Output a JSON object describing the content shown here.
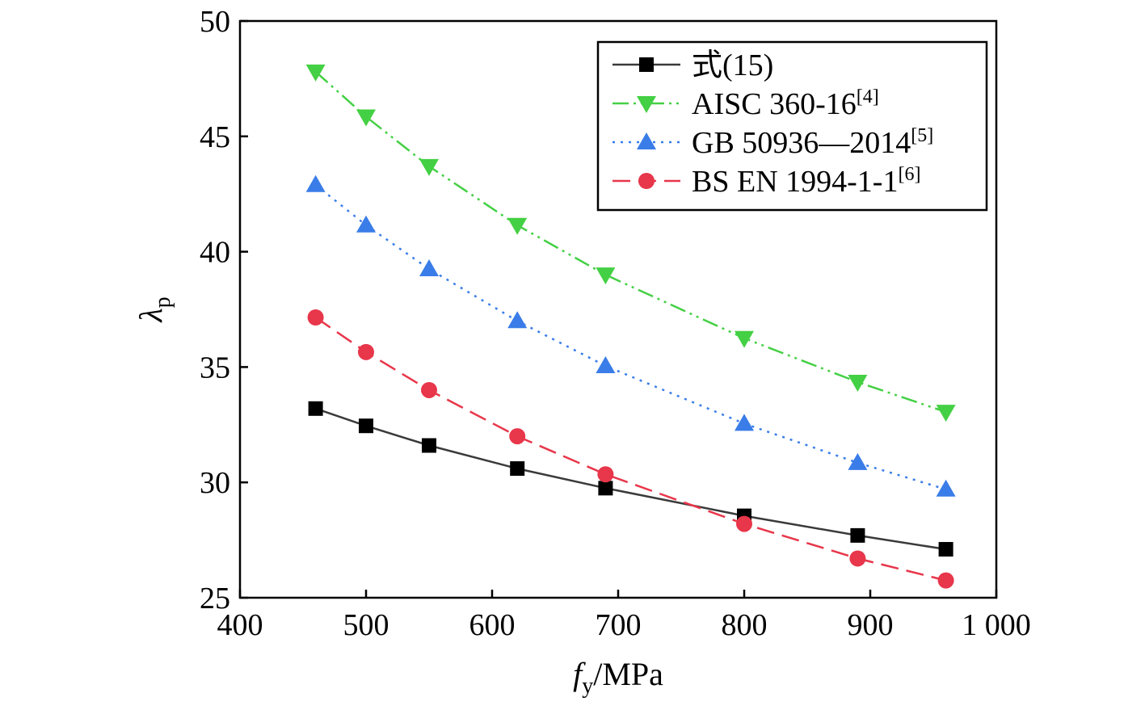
{
  "chart_data": {
    "type": "line",
    "x": [
      460,
      500,
      550,
      620,
      690,
      800,
      890,
      960
    ],
    "xlim": [
      400,
      1000
    ],
    "ylim": [
      25,
      50
    ],
    "xticks": [
      400,
      500,
      600,
      700,
      800,
      900,
      1000
    ],
    "xtick_labels": [
      "400",
      "500",
      "600",
      "700",
      "800",
      "900",
      "1 000"
    ],
    "yticks": [
      25,
      30,
      35,
      40,
      45,
      50
    ],
    "ytick_labels": [
      "25",
      "30",
      "35",
      "40",
      "45",
      "50"
    ],
    "xlabel": {
      "main": "f",
      "sub": "y",
      "rest": "/MPa"
    },
    "ylabel": {
      "main": "λ",
      "sub": "p"
    },
    "legend_position": "top-right",
    "grid": false,
    "series": [
      {
        "name": "式(15)",
        "ref": "",
        "color": "#3a3a3a",
        "marker_color": "#000000",
        "marker": "square",
        "dash": "solid",
        "values": [
          33.2,
          32.45,
          31.6,
          30.6,
          29.75,
          28.55,
          27.7,
          27.1
        ]
      },
      {
        "name": "AISC 360-16",
        "ref": "[4]",
        "color": "#44d044",
        "marker_color": "#44d044",
        "marker": "triangle-down",
        "dash": "dashdotdot",
        "values": [
          47.8,
          45.85,
          43.7,
          41.15,
          39.0,
          36.25,
          34.35,
          33.05
        ]
      },
      {
        "name": "GB 50936—2014",
        "ref": "[5]",
        "color": "#3a7de8",
        "marker_color": "#3a7de8",
        "marker": "triangle-up",
        "dash": "dotted",
        "values": [
          42.9,
          41.15,
          39.25,
          37.0,
          35.05,
          32.55,
          30.85,
          29.7
        ]
      },
      {
        "name": "BS EN 1994-1-1",
        "ref": "[6]",
        "color": "#e8364a",
        "marker_color": "#e8364a",
        "marker": "circle",
        "dash": "dashed",
        "values": [
          37.15,
          35.65,
          34.0,
          32.0,
          30.35,
          28.2,
          26.7,
          25.75
        ]
      }
    ]
  }
}
